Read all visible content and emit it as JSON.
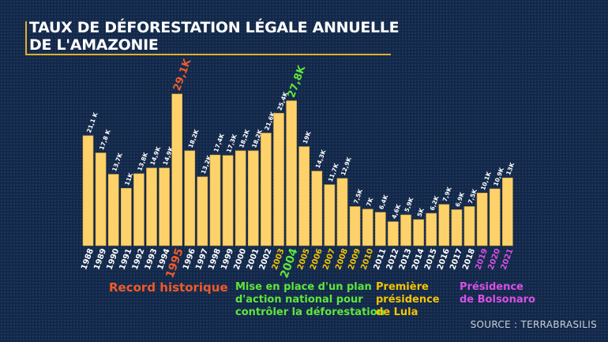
{
  "title_line1": "TAUX DE DÉFORESTATION LÉGALE ANNUELLE",
  "title_line2": "DE L'AMAZONIE",
  "source": "SOURCE : TERRABRASILIS",
  "colors": {
    "bar": "#fdd26b",
    "record": "#f05a2a",
    "action_plan": "#5ee63a",
    "lula": "#f5c400",
    "bolsonaro": "#d84fe6",
    "default_label": "#ffffff"
  },
  "annotations": [
    {
      "text": "Record historique",
      "color": "#f05a2a"
    },
    {
      "text": "Mise en place d'un plan d'action national pour contrôler la déforestation",
      "line1": "Mise en place d'un plan",
      "line2": "d'action national pour",
      "line3": "contrôler la déforestation",
      "color": "#5ee63a"
    },
    {
      "text": "Première présidence de Lula",
      "line1": "Première",
      "line2": "présidence",
      "line3": "de Lula",
      "color": "#f5c400"
    },
    {
      "text": "Présidence de Bolsonaro",
      "line1": "Présidence",
      "line2": "de Bolsonaro",
      "color": "#d84fe6"
    }
  ],
  "chart_data": {
    "type": "bar",
    "title": "TAUX DE DÉFORESTATION LÉGALE ANNUELLE DE L'AMAZONIE",
    "unit": "K",
    "categories": [
      "1988",
      "1989",
      "1990",
      "1991",
      "1992",
      "1993",
      "1994",
      "1995",
      "1996",
      "1997",
      "1998",
      "1999",
      "2000",
      "2001",
      "2002",
      "2003",
      "2004",
      "2005",
      "2006",
      "2007",
      "2008",
      "2009",
      "2010",
      "2011",
      "2012",
      "2013",
      "2014",
      "2015",
      "2016",
      "2017",
      "2018",
      "2019",
      "2020",
      "2021"
    ],
    "values": [
      21.1,
      17.8,
      13.7,
      11,
      13.8,
      14.9,
      14.9,
      29.1,
      18.2,
      13.2,
      17.4,
      17.3,
      18.2,
      18.2,
      21.6,
      25.4,
      27.8,
      19,
      14.3,
      11.7,
      12.9,
      7.5,
      7,
      6.4,
      4.6,
      5.9,
      5,
      6.2,
      7.9,
      6.9,
      7.5,
      10.1,
      10.9,
      13
    ],
    "value_labels": [
      "21,1 K",
      "17,8 K",
      "13,7K",
      "11K",
      "13,8K",
      "14,9K",
      "14,9K",
      "29,1K",
      "18,2K",
      "13,2K",
      "17,4K",
      "17,3K",
      "18,2K",
      "18,2K",
      "21,6K",
      "25,4K",
      "27,8K",
      "19K",
      "14,3K",
      "11,7K",
      "12,9K",
      "7,5K",
      "7K",
      "6,4K",
      "4,6K",
      "5,9K",
      "5K",
      "6,2K",
      "7,9K",
      "6,9K",
      "7,5K",
      "10,1K",
      "10,9K",
      "13K"
    ],
    "highlight": {
      "1995": "record",
      "2003": "lula",
      "2004": "action_plan",
      "2005": "lula",
      "2006": "lula",
      "2007": "lula",
      "2008": "lula",
      "2009": "lula",
      "2010": "lula",
      "2019": "bolsonaro",
      "2020": "bolsonaro",
      "2021": "bolsonaro"
    },
    "ylim": [
      0,
      29.1
    ],
    "grid": false,
    "axes_visible": false
  }
}
